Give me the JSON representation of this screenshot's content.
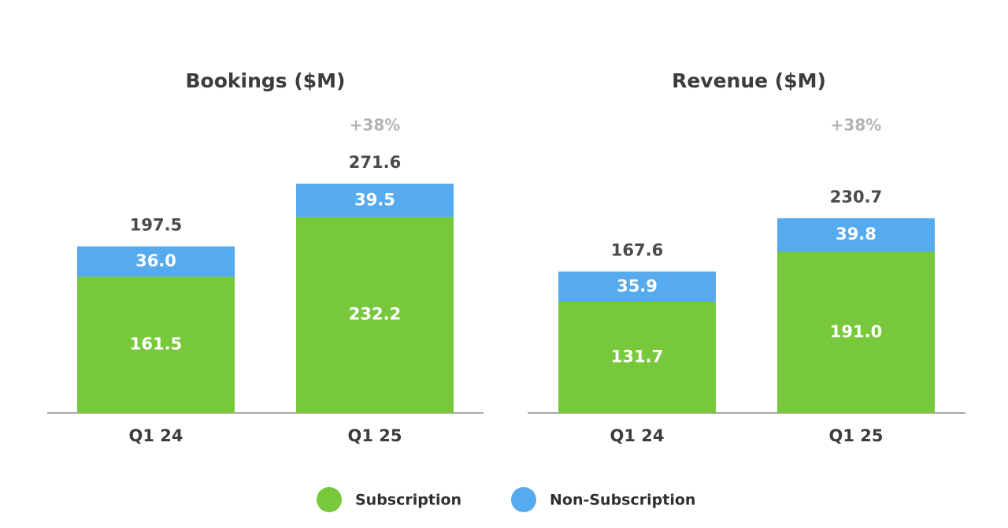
{
  "chart_data": [
    {
      "type": "bar",
      "stacked": true,
      "title": "Bookings ($M)",
      "categories": [
        "Q1 24",
        "Q1 25"
      ],
      "series": [
        {
          "name": "Subscription",
          "values": [
            161.5,
            232.2
          ],
          "labels": [
            "161.5",
            "232.2"
          ]
        },
        {
          "name": "Non-Subscription",
          "values": [
            36.0,
            39.5
          ],
          "labels": [
            "36.0",
            "39.5"
          ]
        }
      ],
      "totals": [
        197.5,
        271.6
      ],
      "total_labels": [
        "197.5",
        "271.6"
      ],
      "growth_label": "+38%",
      "ylim": [
        0,
        290
      ]
    },
    {
      "type": "bar",
      "stacked": true,
      "title": "Revenue ($M)",
      "categories": [
        "Q1 24",
        "Q1 25"
      ],
      "series": [
        {
          "name": "Subscription",
          "values": [
            131.7,
            191.0
          ],
          "labels": [
            "131.7",
            "191.0"
          ]
        },
        {
          "name": "Non-Subscription",
          "values": [
            35.9,
            39.8
          ],
          "labels": [
            "35.9",
            "39.8"
          ]
        }
      ],
      "totals": [
        167.6,
        230.7
      ],
      "total_labels": [
        "167.6",
        "230.7"
      ],
      "growth_label": "+38%",
      "ylim": [
        0,
        290
      ]
    }
  ],
  "legend": {
    "placement": "bottom-center",
    "items": [
      {
        "label": "Subscription",
        "color": "#78c83c"
      },
      {
        "label": "Non-Subscription",
        "color": "#56aaee"
      }
    ]
  },
  "colors": {
    "subscription": "#78c83c",
    "non_subscription": "#56aaee",
    "axis": "#a8a8a8"
  }
}
